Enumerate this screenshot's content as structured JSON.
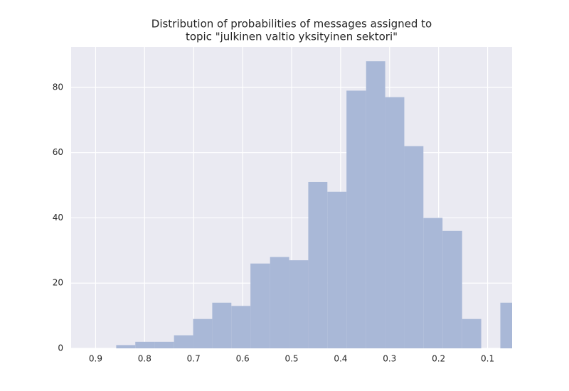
{
  "chart_data": {
    "type": "histogram",
    "title": [
      "Distribution of probabilities of messages assigned to",
      "topic \"julkinen valtio yksityinen sektori\""
    ],
    "bins": [
      0.858,
      0.819,
      0.78,
      0.74,
      0.701,
      0.662,
      0.623,
      0.584,
      0.544,
      0.505,
      0.466,
      0.427,
      0.388,
      0.348,
      0.309,
      0.27,
      0.231,
      0.192,
      0.152,
      0.113,
      0.074,
      0.035
    ],
    "values": [
      1,
      2,
      2,
      4,
      9,
      14,
      13,
      26,
      28,
      27,
      51,
      48,
      79,
      88,
      77,
      62,
      40,
      36,
      9,
      0,
      14
    ],
    "color": "#a9b8d7",
    "xlim": [
      0.95,
      0.05
    ],
    "xticks": [
      0.9,
      0.8,
      0.7,
      0.6,
      0.5,
      0.4,
      0.3,
      0.2,
      0.1
    ],
    "ylim": [
      0,
      92.4
    ],
    "yticks": [
      0,
      20,
      40,
      60,
      80
    ],
    "grid": true
  }
}
